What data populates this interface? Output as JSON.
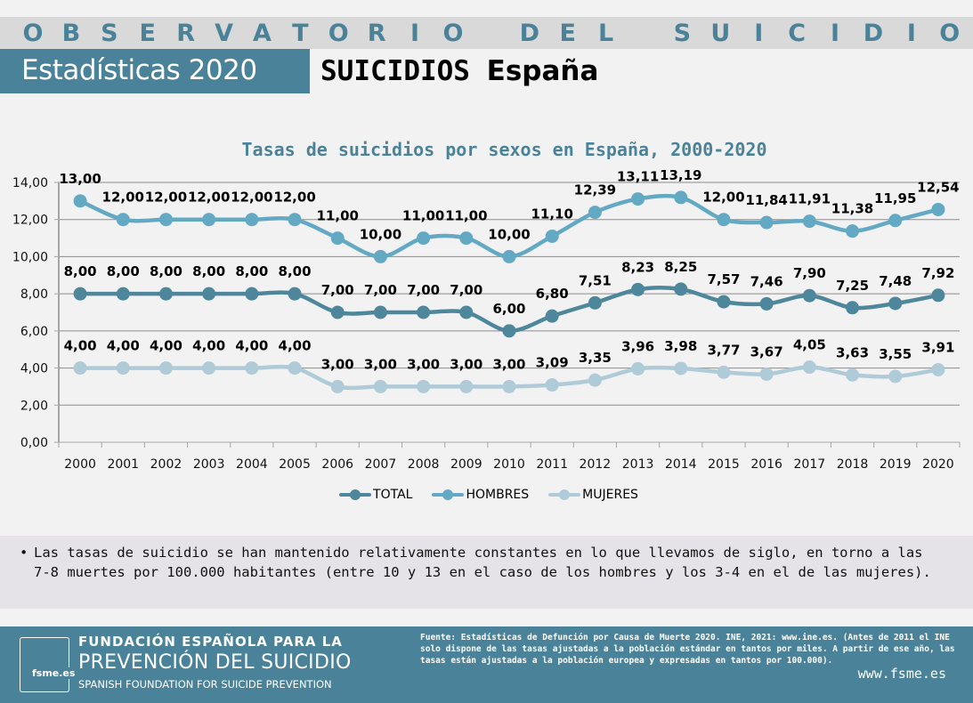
{
  "header": {
    "observatorio_letters": [
      "O",
      "B",
      "S",
      "E",
      "R",
      "V",
      "A",
      "T",
      "O",
      "R",
      "I",
      "O",
      " ",
      "D",
      "E",
      "L",
      " ",
      "S",
      "U",
      "I",
      "C",
      "I",
      "D",
      "I",
      "O"
    ],
    "observatorio_text": "OBSERVATORIO DEL SUICIDIO",
    "stats_label": "Estadísticas 2020",
    "title_part1": "SUICIDIOS",
    "title_part2": "España"
  },
  "colors": {
    "brand": "#4a8399",
    "total": "#4e879c",
    "hombres": "#64a9c4",
    "mujeres": "#afcbd8",
    "band": "#d9d9d9",
    "note_bg": "#e6e3e8"
  },
  "chart_data": {
    "type": "line",
    "title": "Tasas de suicidios por sexos en España, 2000-2020",
    "xlabel": "",
    "ylabel": "",
    "ylim": [
      0,
      14
    ],
    "yticks": [
      "0,00",
      "2,00",
      "4,00",
      "6,00",
      "8,00",
      "10,00",
      "12,00",
      "14,00"
    ],
    "ytick_values": [
      0,
      2,
      4,
      6,
      8,
      10,
      12,
      14
    ],
    "grid": true,
    "legend_position": "bottom",
    "categories": [
      "2000",
      "2001",
      "2002",
      "2003",
      "2004",
      "2005",
      "2006",
      "2007",
      "2008",
      "2009",
      "2010",
      "2011",
      "2012",
      "2013",
      "2014",
      "2015",
      "2016",
      "2017",
      "2018",
      "2019",
      "2020"
    ],
    "series": [
      {
        "name": "TOTAL",
        "values": [
          8.0,
          8.0,
          8.0,
          8.0,
          8.0,
          8.0,
          7.0,
          7.0,
          7.0,
          7.0,
          6.0,
          6.8,
          7.51,
          8.23,
          8.25,
          7.57,
          7.46,
          7.9,
          7.25,
          7.48,
          7.92
        ],
        "labels": [
          "8,00",
          "8,00",
          "8,00",
          "8,00",
          "8,00",
          "8,00",
          "7,00",
          "7,00",
          "7,00",
          "7,00",
          "6,00",
          "6,80",
          "7,51",
          "8,23",
          "8,25",
          "7,57",
          "7,46",
          "7,90",
          "7,25",
          "7,48",
          "7,92"
        ]
      },
      {
        "name": "HOMBRES",
        "values": [
          13.0,
          12.0,
          12.0,
          12.0,
          12.0,
          12.0,
          11.0,
          10.0,
          11.0,
          11.0,
          10.0,
          11.1,
          12.39,
          13.11,
          13.19,
          12.0,
          11.84,
          11.91,
          11.38,
          11.95,
          12.54
        ],
        "labels": [
          "13,00",
          "12,00",
          "12,00",
          "12,00",
          "12,00",
          "12,00",
          "11,00",
          "10,00",
          "11,00",
          "11,00",
          "10,00",
          "11,10",
          "12,39",
          "13,11",
          "13,19",
          "12,00",
          "11,84",
          "11,91",
          "11,38",
          "11,95",
          "12,54"
        ]
      },
      {
        "name": "MUJERES",
        "values": [
          4.0,
          4.0,
          4.0,
          4.0,
          4.0,
          4.0,
          3.0,
          3.0,
          3.0,
          3.0,
          3.0,
          3.09,
          3.35,
          3.96,
          3.98,
          3.77,
          3.67,
          4.05,
          3.63,
          3.55,
          3.91
        ],
        "labels": [
          "4,00",
          "4,00",
          "4,00",
          "4,00",
          "4,00",
          "4,00",
          "3,00",
          "3,00",
          "3,00",
          "3,00",
          "3,00",
          "3,09",
          "3,35",
          "3,96",
          "3,98",
          "3,77",
          "3,67",
          "4,05",
          "3,63",
          "3,55",
          "3,91"
        ]
      }
    ]
  },
  "legend": {
    "items": [
      {
        "label": "TOTAL"
      },
      {
        "label": "HOMBRES"
      },
      {
        "label": "MUJERES"
      }
    ]
  },
  "note": {
    "bullet": "•",
    "text": "Las tasas de suicidio se han mantenido relativamente constantes en lo que llevamos de siglo, en torno a las 7-8 muertes por 100.000 habitantes (entre 10 y 13 en el caso de los hombres y los 3-4 en el de las mujeres)."
  },
  "footer": {
    "logo_domain": "fsme.es",
    "org_line1": "FUNDACIÓN ESPAÑOLA PARA LA",
    "org_line2": "PREVENCIÓN DEL SUICIDIO",
    "org_line3": "SPANISH FOUNDATION FOR SUICIDE PREVENTION",
    "source": "Fuente: Estadísticas de Defunción por Causa de Muerte 2020. INE, 2021: www.ine.es. (Antes de 2011 el INE solo dispone de las tasas ajustadas a la población estándar en tantos por miles. A partir de ese año, las tasas están ajustadas a la población europea y expresadas en tantos por 100.000).",
    "website": "www.fsme.es"
  }
}
